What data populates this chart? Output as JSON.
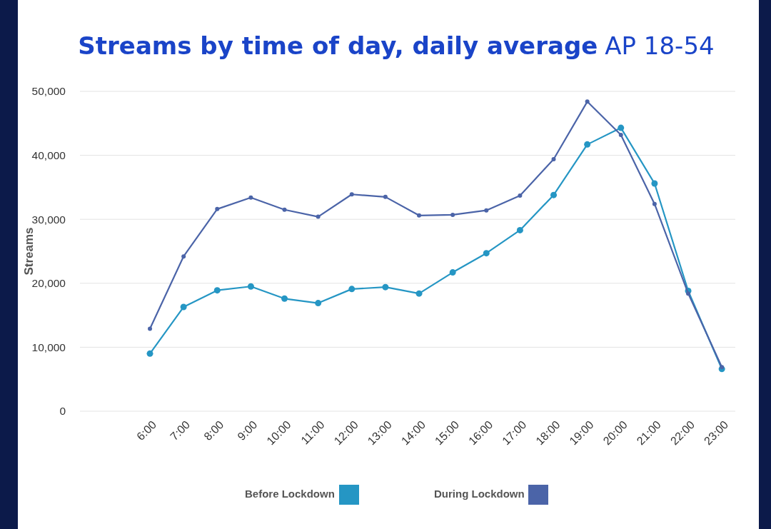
{
  "chart_data": {
    "type": "line",
    "title": "Streams by time of day, daily average",
    "subtitle": "AP 18-54",
    "ylabel": "Streams",
    "categories": [
      "6:00",
      "7:00",
      "8:00",
      "9:00",
      "10:00",
      "11:00",
      "12:00",
      "13:00",
      "14:00",
      "15:00",
      "16:00",
      "17:00",
      "18:00",
      "19:00",
      "20:00",
      "21:00",
      "22:00",
      "23:00"
    ],
    "series": [
      {
        "name": "Before Lockdown",
        "color": "#2596c4",
        "values": [
          9000,
          16300,
          18900,
          19500,
          17600,
          16900,
          19100,
          19400,
          18400,
          21700,
          24700,
          28300,
          33800,
          41700,
          44300,
          35600,
          18800,
          6600
        ]
      },
      {
        "name": "During Lockdown",
        "color": "#4b64a8",
        "values": [
          12900,
          24200,
          31600,
          33400,
          31500,
          30400,
          33900,
          33500,
          30600,
          30700,
          31400,
          33700,
          39400,
          48400,
          43200,
          32400,
          18400,
          6900
        ]
      }
    ],
    "ylim": [
      0,
      50000
    ],
    "yticks": [
      {
        "value": 0,
        "label": "0"
      },
      {
        "value": 10000,
        "label": "10,000"
      },
      {
        "value": 20000,
        "label": "20,000"
      },
      {
        "value": 30000,
        "label": "30,000"
      },
      {
        "value": 40000,
        "label": "40,000"
      },
      {
        "value": 50000,
        "label": "50,000"
      }
    ],
    "grid": "y",
    "legend": "bottom",
    "marker": "circle",
    "line_style": "solid"
  }
}
